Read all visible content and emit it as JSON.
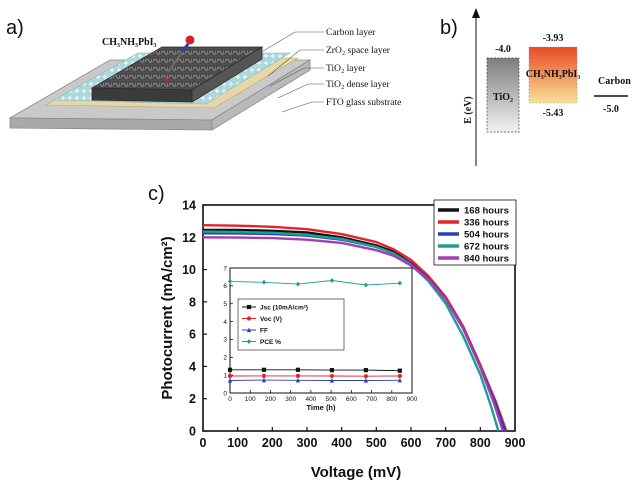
{
  "panel_a": {
    "label": "a)",
    "formula": "CH₃NH₃PbI₃",
    "layers": [
      "Carbon layer",
      "ZrO₂ space layer",
      "TiO₂ layer",
      "TiO₂ dense layer",
      "FTO glass substrate"
    ]
  },
  "panel_b": {
    "label": "b)",
    "axis_label": "E (eV)",
    "tio2": {
      "label": "TiO₂",
      "top": "-4.0"
    },
    "perovskite": {
      "label": "CH₃NH₃PbI₃",
      "top": "-3.93",
      "bottom": "-5.43"
    },
    "carbon": {
      "label": "Carbon",
      "level": "-5.0"
    }
  },
  "panel_c": {
    "label": "c)"
  },
  "chart_data": [
    {
      "type": "line",
      "xlabel": "Voltage (mV)",
      "ylabel": "Photocurrent (mA/cm²)",
      "xlim": [
        0,
        900
      ],
      "ylim": [
        0,
        14
      ],
      "xticks": [
        0,
        100,
        200,
        300,
        400,
        500,
        600,
        700,
        800,
        900
      ],
      "yticks": [
        0,
        2,
        4,
        6,
        8,
        10,
        12,
        14
      ],
      "legend_position": "top-right",
      "series": [
        {
          "name": "168 hours",
          "color": "#111111",
          "jsc": 12.45,
          "voc": 868,
          "pts": [
            [
              0,
              12.45
            ],
            [
              100,
              12.45
            ],
            [
              200,
              12.4
            ],
            [
              300,
              12.3
            ],
            [
              400,
              12.0
            ],
            [
              500,
              11.5
            ],
            [
              550,
              11.1
            ],
            [
              600,
              10.4
            ],
            [
              650,
              9.5
            ],
            [
              700,
              8.2
            ],
            [
              750,
              6.4
            ],
            [
              800,
              4.0
            ],
            [
              840,
              1.8
            ],
            [
              868,
              0
            ]
          ]
        },
        {
          "name": "336 hours",
          "color": "#e3242b",
          "jsc": 12.75,
          "voc": 875,
          "pts": [
            [
              0,
              12.75
            ],
            [
              100,
              12.72
            ],
            [
              200,
              12.65
            ],
            [
              300,
              12.5
            ],
            [
              400,
              12.2
            ],
            [
              500,
              11.7
            ],
            [
              550,
              11.25
            ],
            [
              600,
              10.6
            ],
            [
              650,
              9.6
            ],
            [
              700,
              8.3
            ],
            [
              750,
              6.5
            ],
            [
              800,
              4.1
            ],
            [
              845,
              1.8
            ],
            [
              875,
              0
            ]
          ]
        },
        {
          "name": "504 hours",
          "color": "#2b3fb8",
          "jsc": 12.25,
          "voc": 872,
          "pts": [
            [
              0,
              12.25
            ],
            [
              100,
              12.24
            ],
            [
              200,
              12.2
            ],
            [
              300,
              12.1
            ],
            [
              400,
              11.85
            ],
            [
              500,
              11.4
            ],
            [
              550,
              11.0
            ],
            [
              600,
              10.35
            ],
            [
              650,
              9.45
            ],
            [
              700,
              8.2
            ],
            [
              750,
              6.4
            ],
            [
              800,
              4.0
            ],
            [
              842,
              1.8
            ],
            [
              872,
              0
            ]
          ]
        },
        {
          "name": "672 hours",
          "color": "#1e9e96",
          "jsc": 12.35,
          "voc": 852,
          "pts": [
            [
              0,
              12.35
            ],
            [
              100,
              12.33
            ],
            [
              200,
              12.28
            ],
            [
              300,
              12.15
            ],
            [
              400,
              11.9
            ],
            [
              500,
              11.4
            ],
            [
              550,
              11.0
            ],
            [
              600,
              10.3
            ],
            [
              650,
              9.3
            ],
            [
              700,
              7.9
            ],
            [
              750,
              5.9
            ],
            [
              800,
              3.5
            ],
            [
              830,
              1.6
            ],
            [
              852,
              0
            ]
          ]
        },
        {
          "name": "840 hours",
          "color": "#a53fb0",
          "jsc": 12.0,
          "voc": 865,
          "pts": [
            [
              0,
              12.0
            ],
            [
              100,
              11.98
            ],
            [
              200,
              11.95
            ],
            [
              300,
              11.85
            ],
            [
              400,
              11.65
            ],
            [
              500,
              11.2
            ],
            [
              550,
              10.85
            ],
            [
              600,
              10.25
            ],
            [
              650,
              9.4
            ],
            [
              700,
              8.15
            ],
            [
              750,
              6.35
            ],
            [
              800,
              3.95
            ],
            [
              838,
              1.8
            ],
            [
              865,
              0
            ]
          ]
        }
      ]
    },
    {
      "type": "line",
      "xlabel": "Time (h)",
      "ylabel": "",
      "xlim": [
        0,
        900
      ],
      "ylim": [
        0,
        7
      ],
      "xticks": [
        0,
        100,
        200,
        300,
        400,
        500,
        600,
        700,
        800,
        900
      ],
      "yticks": [
        0,
        1,
        2,
        3,
        4,
        5,
        6,
        7
      ],
      "legend_position": "center-left",
      "x": [
        0,
        168,
        336,
        504,
        672,
        840
      ],
      "series": [
        {
          "name": "Jsc (10mA/cm²)",
          "color": "#111111",
          "marker": "square",
          "values": [
            1.3,
            1.3,
            1.3,
            1.28,
            1.28,
            1.25
          ]
        },
        {
          "name": "Voc (V)",
          "color": "#e3242b",
          "marker": "circle",
          "values": [
            0.95,
            0.96,
            0.96,
            0.95,
            0.94,
            0.95
          ]
        },
        {
          "name": "FF",
          "color": "#2b3fb8",
          "marker": "triangle",
          "values": [
            0.7,
            0.72,
            0.71,
            0.7,
            0.7,
            0.71
          ]
        },
        {
          "name": "PCE %",
          "color": "#1e9e96",
          "marker": "diamond",
          "values": [
            6.25,
            6.2,
            6.1,
            6.3,
            6.05,
            6.15
          ]
        }
      ]
    }
  ]
}
